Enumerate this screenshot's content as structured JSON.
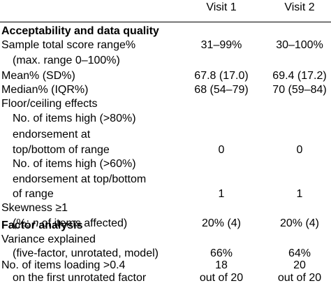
{
  "header": {
    "visit1": "Visit 1",
    "visit2": "Visit 2"
  },
  "rows": [
    {
      "label": "Acceptability and data quality",
      "bold": true,
      "indent": false,
      "v1": "",
      "v2": ""
    },
    {
      "label": "Sample total score range%",
      "bold": false,
      "indent": false,
      "v1": "31–99%",
      "v2": "30–100%"
    },
    {
      "label": "(max. range 0–100%)",
      "bold": false,
      "indent": true,
      "v1": "",
      "v2": ""
    },
    {
      "label": "Mean% (SD%)",
      "bold": false,
      "indent": false,
      "v1": "67.8 (17.0)",
      "v2": "69.4 (17.2)"
    },
    {
      "label": "Median% (IQR%)",
      "bold": false,
      "indent": false,
      "v1": "68 (54–79)",
      "v2": "70 (59–84)"
    },
    {
      "label": "Floor/ceiling effects",
      "bold": false,
      "indent": false,
      "v1": "",
      "v2": ""
    },
    {
      "label": "No. of items high (>80%)",
      "bold": false,
      "indent": true,
      "v1": "",
      "v2": ""
    },
    {
      "label": "endorsement at",
      "bold": false,
      "indent": true,
      "v1": "",
      "v2": ""
    },
    {
      "label": "top/bottom of range",
      "bold": false,
      "indent": true,
      "v1": "0",
      "v2": "0"
    },
    {
      "label": "No. of items high (>60%)",
      "bold": false,
      "indent": true,
      "v1": "",
      "v2": ""
    },
    {
      "label": "endorsement at top/bottom",
      "bold": false,
      "indent": true,
      "v1": "",
      "v2": ""
    },
    {
      "label": "of range",
      "bold": false,
      "indent": true,
      "v1": "1",
      "v2": "1"
    },
    {
      "label": "Skewness ≥1",
      "bold": false,
      "indent": false,
      "v1": "",
      "v2": ""
    },
    {
      "label_pre": "(%; ",
      "label_italic": "n",
      "label_post": " of items affected)",
      "bold": false,
      "indent": true,
      "v1": "20% (4)",
      "v2": "20% (4)"
    },
    {
      "label": "Factor analysis",
      "bold": true,
      "indent": false,
      "v1": "",
      "v2": ""
    },
    {
      "label": "Variance explained",
      "bold": false,
      "indent": false,
      "v1": "",
      "v2": ""
    },
    {
      "label": "(five-factor, unrotated, model)",
      "bold": false,
      "indent": true,
      "v1": "66%",
      "v2": "64%"
    },
    {
      "label": "No. of items loading >0.4",
      "bold": false,
      "indent": false,
      "v1": "18",
      "v2": "20"
    },
    {
      "label": "on the first unrotated factor",
      "bold": false,
      "indent": true,
      "v1": "out of 20",
      "v2": "out of 20"
    }
  ]
}
